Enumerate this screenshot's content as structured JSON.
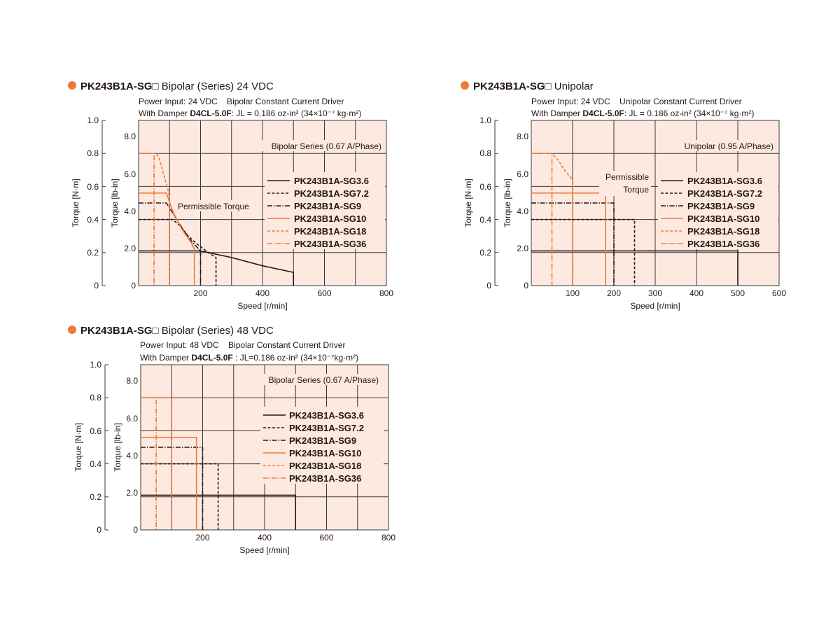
{
  "colors": {
    "orange": "#ee7a3a",
    "black": "#231815",
    "plot_bg": "#fde9df",
    "grid": "#3a3a3a"
  },
  "chart_data": [
    {
      "type": "line",
      "title_model": "PK243B1A-SG",
      "title_box": "□",
      "title_rest": " Bipolar (Series) 24 VDC",
      "subtitle_1": "Power Input: 24 VDC    Bipolar Constant Current Driver",
      "subtitle_2_pre": "With Damper ",
      "subtitle_2_bold": "D4CL-5.0F",
      "subtitle_2_post": ": JL = 0.186 oz-in² (34×10⁻⁷ kg·m²)",
      "xlabel": "Speed [r/min]",
      "ylabel_left": "Torque [N·m]",
      "ylabel_right": "Torque [lb-in]",
      "xlim": [
        0,
        800
      ],
      "ylim_nm": [
        0,
        1.0
      ],
      "ylim_lbin": [
        0,
        8.85
      ],
      "x_ticks": [
        "200",
        "400",
        "600",
        "800"
      ],
      "y_ticks_nm": [
        "0",
        "0.2",
        "0.4",
        "0.6",
        "0.8",
        "1.0"
      ],
      "y_ticks_lbin": [
        "0",
        "2.0",
        "4.0",
        "6.0",
        "8.0"
      ],
      "condition_label": "Bipolar Series (0.67 A/Phase)",
      "annotation": "Permissible Torque",
      "legend": [
        "PK243B1A-SG3.6",
        "PK243B1A-SG7.2",
        "PK243B1A-SG9",
        "PK243B1A-SG10",
        "PK243B1A-SG18",
        "PK243B1A-SG36"
      ],
      "series": [
        {
          "name": "PK243B1A-SG3.6",
          "color": "black",
          "dash": "solid",
          "x": [
            0,
            200,
            300,
            400,
            500,
            500
          ],
          "y": [
            0.21,
            0.21,
            0.17,
            0.12,
            0.08,
            0
          ]
        },
        {
          "name": "PK243B1A-SG7.2",
          "color": "black",
          "dash": "dash",
          "x": [
            0,
            110,
            135,
            160,
            190,
            225,
            250,
            250
          ],
          "y": [
            0.4,
            0.4,
            0.36,
            0.3,
            0.25,
            0.2,
            0.17,
            0
          ]
        },
        {
          "name": "PK243B1A-SG9",
          "color": "black",
          "dash": "dashdot",
          "x": [
            0,
            90,
            110,
            140,
            170,
            200,
            200
          ],
          "y": [
            0.5,
            0.5,
            0.44,
            0.35,
            0.27,
            0.21,
            0
          ]
        },
        {
          "name": "PK243B1A-SG10",
          "color": "orange",
          "dash": "solid",
          "x": [
            0,
            90,
            110,
            140,
            170,
            180,
            180
          ],
          "y": [
            0.56,
            0.56,
            0.45,
            0.34,
            0.26,
            0.22,
            0
          ]
        },
        {
          "name": "PK243B1A-SG18",
          "color": "orange",
          "dash": "dash",
          "x": [
            0,
            55,
            65,
            80,
            95,
            100,
            100
          ],
          "y": [
            0.8,
            0.8,
            0.78,
            0.68,
            0.58,
            0.53,
            0
          ]
        },
        {
          "name": "PK243B1A-SG36",
          "color": "orange",
          "dash": "dashdot",
          "x": [
            0,
            50,
            50
          ],
          "y": [
            0.8,
            0.8,
            0
          ]
        }
      ]
    },
    {
      "type": "line",
      "title_model": "PK243B1A-SG",
      "title_box": "□",
      "title_rest": " Unipolar",
      "subtitle_1": "Power Input: 24 VDC    Unipolar Constant Current Driver",
      "subtitle_2_pre": "With Damper ",
      "subtitle_2_bold": "D4CL-5.0F",
      "subtitle_2_post": ": JL = 0.186 oz-in² (34×10⁻⁷ kg·m²)",
      "xlabel": "Speed [r/min]",
      "ylabel_left": "Torque [N·m]",
      "ylabel_right": "Torque [lb-in]",
      "xlim": [
        0,
        600
      ],
      "ylim_nm": [
        0,
        1.0
      ],
      "ylim_lbin": [
        0,
        8.85
      ],
      "x_ticks": [
        "100",
        "200",
        "300",
        "400",
        "500",
        "600"
      ],
      "y_ticks_nm": [
        "0",
        "0.2",
        "0.4",
        "0.6",
        "0.8",
        "1.0"
      ],
      "y_ticks_lbin": [
        "0",
        "2.0",
        "4.0",
        "6.0",
        "8.0"
      ],
      "condition_label": "Unipolar (0.95 A/Phase)",
      "annotation_1": "Permissible",
      "annotation_2": "Torque",
      "legend": [
        "PK243B1A-SG3.6",
        "PK243B1A-SG7.2",
        "PK243B1A-SG9",
        "PK243B1A-SG10",
        "PK243B1A-SG18",
        "PK243B1A-SG36"
      ],
      "series": [
        {
          "name": "PK243B1A-SG3.6",
          "color": "black",
          "dash": "solid",
          "x": [
            0,
            500,
            500
          ],
          "y": [
            0.21,
            0.21,
            0
          ]
        },
        {
          "name": "PK243B1A-SG7.2",
          "color": "black",
          "dash": "dash",
          "x": [
            0,
            250,
            250
          ],
          "y": [
            0.4,
            0.4,
            0
          ]
        },
        {
          "name": "PK243B1A-SG9",
          "color": "black",
          "dash": "dashdot",
          "x": [
            0,
            200,
            200
          ],
          "y": [
            0.5,
            0.5,
            0
          ]
        },
        {
          "name": "PK243B1A-SG10",
          "color": "orange",
          "dash": "solid",
          "x": [
            0,
            180,
            180
          ],
          "y": [
            0.56,
            0.56,
            0
          ]
        },
        {
          "name": "PK243B1A-SG18",
          "color": "orange",
          "dash": "dash",
          "x": [
            0,
            50,
            65,
            80,
            100,
            100
          ],
          "y": [
            0.8,
            0.8,
            0.76,
            0.7,
            0.64,
            0
          ]
        },
        {
          "name": "PK243B1A-SG36",
          "color": "orange",
          "dash": "dashdot",
          "x": [
            0,
            50,
            50
          ],
          "y": [
            0.8,
            0.8,
            0
          ]
        }
      ]
    },
    {
      "type": "line",
      "title_model": "PK243B1A-SG",
      "title_box": "□",
      "title_rest": " Bipolar (Series) 48 VDC",
      "subtitle_1": "Power Input: 48 VDC    Bipolar Constant Current Driver",
      "subtitle_2_pre": "With Damper ",
      "subtitle_2_bold": "D4CL-5.0F",
      "subtitle_2_post": " : JL=0.186 oz-in² (34×10⁻⁷kg·m²)",
      "xlabel": "Speed [r/min]",
      "ylabel_left": "Torque [N·m]",
      "ylabel_right": "Torque [lb-in]",
      "xlim": [
        0,
        800
      ],
      "ylim_nm": [
        0,
        1.0
      ],
      "ylim_lbin": [
        0,
        8.85
      ],
      "x_ticks": [
        "200",
        "400",
        "600",
        "800"
      ],
      "y_ticks_nm": [
        "0",
        "0.2",
        "0.4",
        "0.6",
        "0.8",
        "1.0"
      ],
      "y_ticks_lbin": [
        "0",
        "2.0",
        "4.0",
        "6.0",
        "8.0"
      ],
      "condition_label": "Bipolar Series (0.67 A/Phase)",
      "legend": [
        "PK243B1A-SG3.6",
        "PK243B1A-SG7.2",
        "PK243B1A-SG9",
        "PK243B1A-SG10",
        "PK243B1A-SG18",
        "PK243B1A-SG36"
      ],
      "series": [
        {
          "name": "PK243B1A-SG3.6",
          "color": "black",
          "dash": "solid",
          "x": [
            0,
            500,
            500
          ],
          "y": [
            0.21,
            0.21,
            0
          ]
        },
        {
          "name": "PK243B1A-SG7.2",
          "color": "black",
          "dash": "dash",
          "x": [
            0,
            250,
            250
          ],
          "y": [
            0.4,
            0.4,
            0
          ]
        },
        {
          "name": "PK243B1A-SG9",
          "color": "black",
          "dash": "dashdot",
          "x": [
            0,
            200,
            200
          ],
          "y": [
            0.5,
            0.5,
            0
          ]
        },
        {
          "name": "PK243B1A-SG10",
          "color": "orange",
          "dash": "solid",
          "x": [
            0,
            180,
            180
          ],
          "y": [
            0.56,
            0.56,
            0
          ]
        },
        {
          "name": "PK243B1A-SG18",
          "color": "orange",
          "dash": "dash",
          "x": [
            0,
            100,
            100
          ],
          "y": [
            0.8,
            0.8,
            0
          ]
        },
        {
          "name": "PK243B1A-SG36",
          "color": "orange",
          "dash": "dashdot",
          "x": [
            0,
            50,
            50
          ],
          "y": [
            0.8,
            0.8,
            0
          ]
        }
      ]
    }
  ]
}
